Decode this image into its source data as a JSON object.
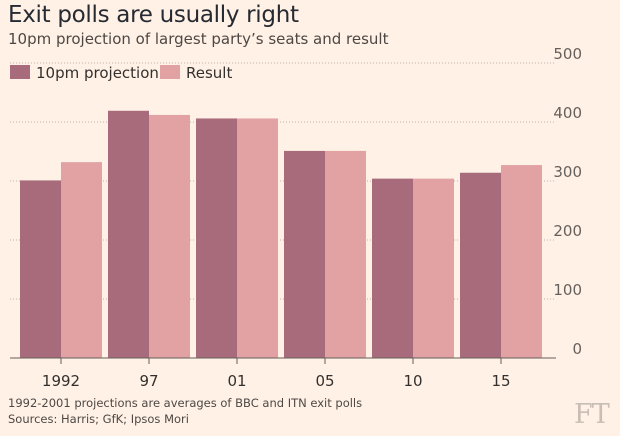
{
  "chart_data": {
    "type": "bar",
    "title": "Exit polls are usually right",
    "subtitle": "10pm projection of largest party’s seats and result",
    "categories": [
      "1992",
      "97",
      "01",
      "05",
      "10",
      "15"
    ],
    "series": [
      {
        "name": "10pm projection",
        "color": "#a86b7c",
        "values": [
          301,
          419,
          406,
          351,
          304,
          314
        ]
      },
      {
        "name": "Result",
        "color": "#e2a2a4",
        "values": [
          332,
          412,
          406,
          351,
          304,
          327
        ]
      }
    ],
    "ylim": [
      0,
      500
    ],
    "yticks": [
      0,
      100,
      200,
      300,
      400,
      500
    ],
    "ytick_labels": [
      "0",
      "100",
      "200",
      "300",
      "400",
      "500"
    ],
    "y_axis_side": "right",
    "grid": true,
    "legend_position": "top-left",
    "xlabel": "",
    "ylabel": ""
  },
  "footer": {
    "note": "1992-2001 projections are averages of BBC and ITN exit polls",
    "source": "Sources: Harris; GfK; Ipsos Mori",
    "logo": "FT"
  }
}
